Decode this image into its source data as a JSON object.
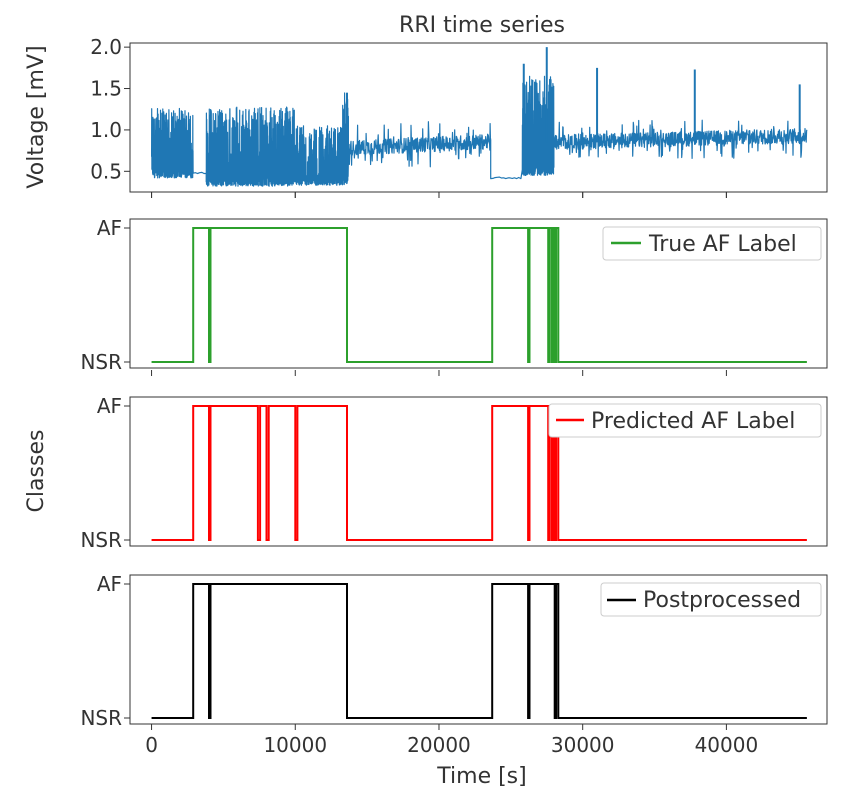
{
  "chart_data": [
    {
      "type": "line",
      "title": "RRI time series",
      "xlabel": "",
      "ylabel": "Voltage [mV]",
      "xlim": [
        -1500,
        47000
      ],
      "ylim": [
        0.25,
        2.05
      ],
      "yticks": [
        0.5,
        1.0,
        1.5,
        2.0
      ],
      "ytick_labels": [
        "0.5",
        "1.0",
        "1.5",
        "2.0"
      ],
      "color": "#1f77b4",
      "segments": [
        {
          "t0": 0,
          "t1": 2900,
          "kind": "dense",
          "lo": 0.42,
          "hi": 1.26,
          "base": 0.5
        },
        {
          "t0": 2900,
          "t1": 3800,
          "kind": "flat",
          "base": 0.48
        },
        {
          "t0": 3800,
          "t1": 10000,
          "kind": "dense",
          "lo": 0.32,
          "hi": 1.28,
          "base": 0.48
        },
        {
          "t0": 10000,
          "t1": 13300,
          "kind": "dense",
          "lo": 0.33,
          "hi": 1.05,
          "base": 0.42
        },
        {
          "t0": 13300,
          "t1": 13700,
          "kind": "dense",
          "lo": 0.33,
          "hi": 1.45,
          "base": 0.55
        },
        {
          "t0": 13700,
          "t1": 23600,
          "kind": "noisy",
          "lo": 0.55,
          "hi": 1.1,
          "base": 0.78
        },
        {
          "t0": 23600,
          "t1": 25800,
          "kind": "flat",
          "base": 0.42
        },
        {
          "t0": 25800,
          "t1": 28000,
          "kind": "dense",
          "lo": 0.45,
          "hi": 1.65,
          "base": 0.95
        },
        {
          "t0": 28000,
          "t1": 45600,
          "kind": "noisy",
          "lo": 0.65,
          "hi": 1.12,
          "base": 0.85
        }
      ],
      "spikes": [
        {
          "t": 13600,
          "v": 1.45
        },
        {
          "t": 25900,
          "v": 1.8
        },
        {
          "t": 27500,
          "v": 2.0
        },
        {
          "t": 31000,
          "v": 1.75
        },
        {
          "t": 37800,
          "v": 1.73
        },
        {
          "t": 45100,
          "v": 1.55
        }
      ]
    },
    {
      "type": "line",
      "title": "",
      "ylabel": "",
      "ycategories": [
        "NSR",
        "AF"
      ],
      "series": [
        {
          "name": "True AF Label",
          "color": "#2ca02c",
          "intervals": [
            [
              2900,
              4000
            ],
            [
              4100,
              13600
            ],
            [
              23700,
              26200
            ],
            [
              26300,
              27600
            ],
            [
              27700,
              27850
            ],
            [
              27950,
              28050
            ],
            [
              28150,
              28300
            ]
          ]
        }
      ]
    },
    {
      "type": "line",
      "title": "",
      "ylabel": "Classes",
      "ycategories": [
        "NSR",
        "AF"
      ],
      "series": [
        {
          "name": "Predicted AF Label",
          "color": "#ff0000",
          "intervals": [
            [
              2900,
              4000
            ],
            [
              4100,
              7400
            ],
            [
              7550,
              8000
            ],
            [
              8150,
              10000
            ],
            [
              10150,
              13600
            ],
            [
              23700,
              26200
            ],
            [
              26300,
              27600
            ],
            [
              27700,
              27850
            ],
            [
              27950,
              28050
            ],
            [
              28150,
              28300
            ]
          ]
        }
      ]
    },
    {
      "type": "line",
      "title": "",
      "xlabel": "Time [s]",
      "ylabel": "",
      "ycategories": [
        "NSR",
        "AF"
      ],
      "xticks": [
        0,
        10000,
        20000,
        30000,
        40000
      ],
      "xtick_labels": [
        "0",
        "10000",
        "20000",
        "30000",
        "40000"
      ],
      "series": [
        {
          "name": "Postprocessed",
          "color": "#000000",
          "intervals": [
            [
              2900,
              4000
            ],
            [
              4100,
              13600
            ],
            [
              23700,
              26200
            ],
            [
              26300,
              28050
            ],
            [
              28150,
              28300
            ]
          ]
        }
      ]
    }
  ]
}
